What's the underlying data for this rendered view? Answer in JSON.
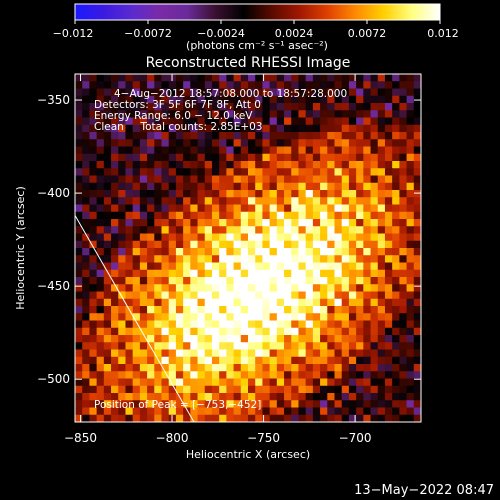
{
  "chart_data": {
    "type": "heatmap",
    "title": "Reconstructed RHESSI Image",
    "xlabel": "Heliocentric X (arcsec)",
    "ylabel": "Heliocentric Y (arcsec)",
    "xlim": [
      -853,
      -664
    ],
    "ylim": [
      -523,
      -336
    ],
    "xticks": [
      {
        "value": -850,
        "label": "−850"
      },
      {
        "value": -800,
        "label": "−800"
      },
      {
        "value": -750,
        "label": "−750"
      },
      {
        "value": -700,
        "label": "−700"
      }
    ],
    "yticks": [
      {
        "value": -350,
        "label": "−350"
      },
      {
        "value": -400,
        "label": "−400"
      },
      {
        "value": -450,
        "label": "−450"
      },
      {
        "value": -500,
        "label": "−500"
      }
    ],
    "colorbar": {
      "range": [
        -0.012,
        0.012
      ],
      "label": "(photons cm⁻² s⁻¹ asec⁻²)",
      "ticks": [
        {
          "value": -0.012,
          "label": "−0.012"
        },
        {
          "value": -0.0072,
          "label": "−0.0072"
        },
        {
          "value": -0.0024,
          "label": "−0.0024"
        },
        {
          "value": 0.0024,
          "label": "0.0024"
        },
        {
          "value": 0.0072,
          "label": "0.0072"
        },
        {
          "value": 0.012,
          "label": "0.012"
        }
      ],
      "colors": [
        "#1a1aff",
        "#3a1ae0",
        "#5a2ad0",
        "#7a2aa8",
        "#6a2a9a",
        "#3a1030",
        "#000000",
        "#5a0a00",
        "#a01800",
        "#e04000",
        "#ff8a00",
        "#ffd000",
        "#ffff80",
        "#ffffff"
      ]
    },
    "annotations": {
      "line1": "4−Aug−2012 18:57:08.000 to 18:57:28.000",
      "line2": "Detectors: 3F 5F 6F 7F 8F, Att 0",
      "line3": "Energy Range: 6.0 − 12.0 keV",
      "line4": "Clean     Total counts: 2.85E+03",
      "peak": "Position of Peak = [−753,−452]"
    },
    "peak": [
      -753,
      -452
    ],
    "limb_line": [
      [
        -853,
        -412
      ],
      [
        -788,
        -523
      ]
    ]
  },
  "timestamp": "13−May−2022 08:47"
}
